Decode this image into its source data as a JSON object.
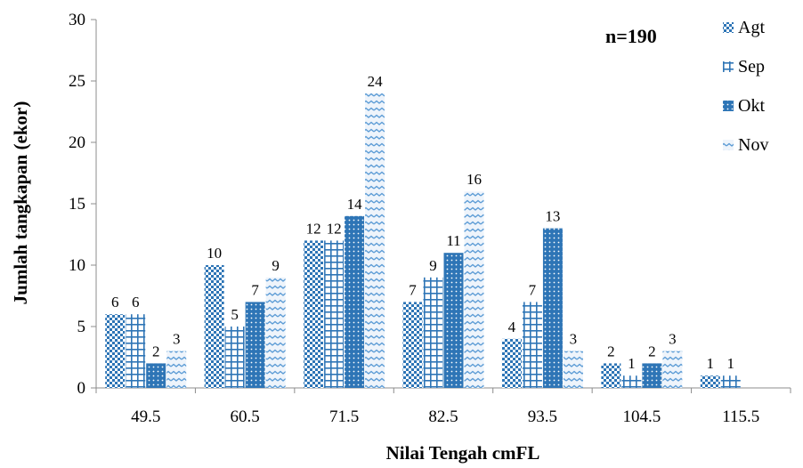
{
  "chart_data": {
    "type": "bar",
    "title": "",
    "xlabel": "Nilai  Tengah cmFL",
    "ylabel": "Jumlah tangkapan (ekor)",
    "annotation": "n=190",
    "ylim": [
      0,
      30
    ],
    "yticks": [
      "0",
      "5",
      "10",
      "15",
      "20",
      "25",
      "30"
    ],
    "grid": false,
    "legend_position": "top-right",
    "categories": [
      "49.5",
      "60.5",
      "71.5",
      "82.5",
      "93.5",
      "104.5",
      "115.5"
    ],
    "series": [
      {
        "name": "Agt",
        "values": [
          6,
          10,
          12,
          7,
          4,
          2,
          1
        ],
        "color": "#2E75B6",
        "pattern": "checker"
      },
      {
        "name": "Sep",
        "values": [
          6,
          5,
          12,
          9,
          7,
          1,
          1
        ],
        "color": "#2E75B6",
        "pattern": "grid"
      },
      {
        "name": "Okt",
        "values": [
          2,
          7,
          14,
          11,
          13,
          2,
          0
        ],
        "color": "#2E75B6",
        "pattern": "dots"
      },
      {
        "name": "Nov",
        "values": [
          3,
          9,
          24,
          16,
          3,
          3,
          0
        ],
        "color": "#6FA8DC",
        "pattern": "zigzag"
      }
    ]
  }
}
